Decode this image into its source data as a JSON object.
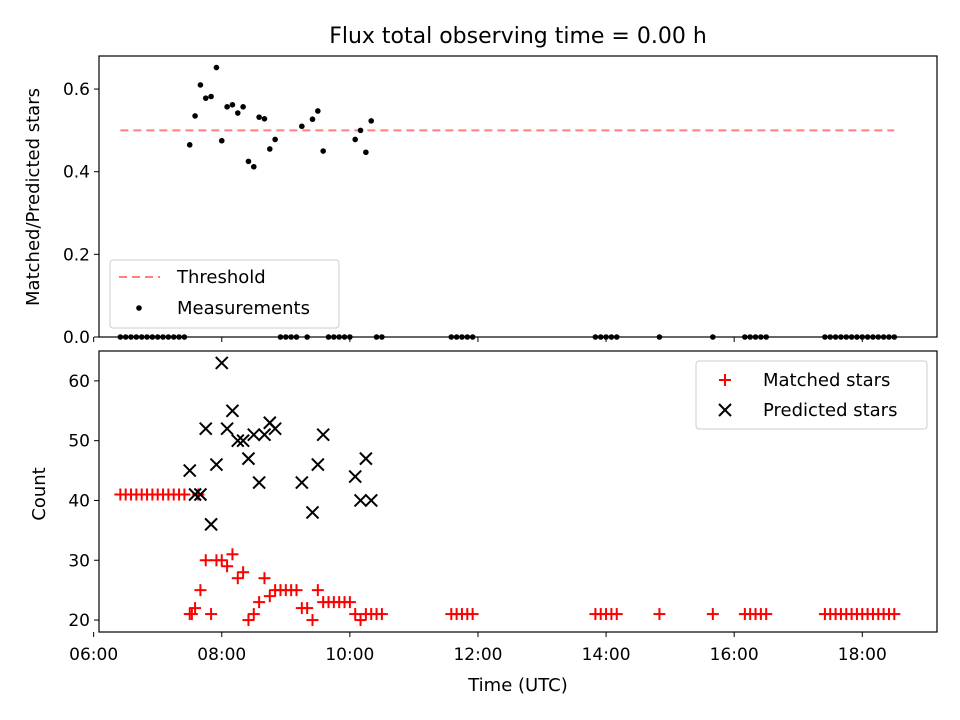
{
  "chart_data": [
    {
      "type": "scatter",
      "title": "Flux total observing time = 0.00 h",
      "xlabel": "",
      "ylabel": "Matched/Predicted stars",
      "xlim": [
        "06:05",
        "19:10"
      ],
      "ylim": [
        0,
        0.68
      ],
      "yticks": [
        0.0,
        0.2,
        0.4,
        0.6
      ],
      "ytick_labels": [
        "0.0",
        "0.2",
        "0.4",
        "0.6"
      ],
      "grid": false,
      "legend_position": "lower-left",
      "threshold": {
        "name": "Threshold",
        "color": "#ff7f7f",
        "style": "dashed",
        "value": 0.5,
        "x_range": [
          "06:25",
          "18:30"
        ]
      },
      "series": [
        {
          "name": "Measurements",
          "color": "#000000",
          "marker": "dot",
          "points": [
            [
              "07:30",
              0.465
            ],
            [
              "07:35",
              0.535
            ],
            [
              "07:40",
              0.61
            ],
            [
              "07:45",
              0.578
            ],
            [
              "07:50",
              0.582
            ],
            [
              "07:55",
              0.652
            ],
            [
              "08:00",
              0.475
            ],
            [
              "08:05",
              0.557
            ],
            [
              "08:10",
              0.562
            ],
            [
              "08:15",
              0.542
            ],
            [
              "08:20",
              0.557
            ],
            [
              "08:25",
              0.425
            ],
            [
              "08:30",
              0.412
            ],
            [
              "08:35",
              0.532
            ],
            [
              "08:40",
              0.528
            ],
            [
              "08:45",
              0.455
            ],
            [
              "08:50",
              0.478
            ],
            [
              "09:15",
              0.51
            ],
            [
              "09:25",
              0.527
            ],
            [
              "09:30",
              0.547
            ],
            [
              "09:35",
              0.45
            ],
            [
              "10:05",
              0.478
            ],
            [
              "10:10",
              0.5
            ],
            [
              "10:15",
              0.447
            ],
            [
              "10:20",
              0.523
            ],
            [
              "06:25",
              0
            ],
            [
              "06:30",
              0
            ],
            [
              "06:35",
              0
            ],
            [
              "06:40",
              0
            ],
            [
              "06:45",
              0
            ],
            [
              "06:50",
              0
            ],
            [
              "06:55",
              0
            ],
            [
              "07:00",
              0
            ],
            [
              "07:05",
              0
            ],
            [
              "07:10",
              0
            ],
            [
              "07:15",
              0
            ],
            [
              "07:20",
              0
            ],
            [
              "07:25",
              0
            ],
            [
              "08:55",
              0
            ],
            [
              "09:00",
              0
            ],
            [
              "09:05",
              0
            ],
            [
              "09:10",
              0
            ],
            [
              "09:20",
              0
            ],
            [
              "09:40",
              0
            ],
            [
              "09:45",
              0
            ],
            [
              "09:50",
              0
            ],
            [
              "09:55",
              0
            ],
            [
              "10:00",
              0
            ],
            [
              "10:25",
              0
            ],
            [
              "10:30",
              0
            ],
            [
              "11:35",
              0
            ],
            [
              "11:40",
              0
            ],
            [
              "11:45",
              0
            ],
            [
              "11:50",
              0
            ],
            [
              "11:55",
              0
            ],
            [
              "13:50",
              0
            ],
            [
              "13:55",
              0
            ],
            [
              "14:00",
              0
            ],
            [
              "14:05",
              0
            ],
            [
              "14:10",
              0
            ],
            [
              "14:50",
              0
            ],
            [
              "15:40",
              0
            ],
            [
              "16:10",
              0
            ],
            [
              "16:15",
              0
            ],
            [
              "16:20",
              0
            ],
            [
              "16:25",
              0
            ],
            [
              "16:30",
              0
            ],
            [
              "17:25",
              0
            ],
            [
              "17:30",
              0
            ],
            [
              "17:35",
              0
            ],
            [
              "17:40",
              0
            ],
            [
              "17:45",
              0
            ],
            [
              "17:50",
              0
            ],
            [
              "17:55",
              0
            ],
            [
              "18:00",
              0
            ],
            [
              "18:05",
              0
            ],
            [
              "18:10",
              0
            ],
            [
              "18:15",
              0
            ],
            [
              "18:20",
              0
            ],
            [
              "18:25",
              0
            ],
            [
              "18:30",
              0
            ]
          ]
        }
      ]
    },
    {
      "type": "scatter",
      "title": "",
      "xlabel": "Time (UTC)",
      "ylabel": "Count",
      "xlim": [
        "06:05",
        "19:10"
      ],
      "ylim": [
        18,
        65
      ],
      "xticks": [
        "06:00",
        "08:00",
        "10:00",
        "12:00",
        "14:00",
        "16:00",
        "18:00"
      ],
      "yticks": [
        20,
        30,
        40,
        50,
        60
      ],
      "grid": false,
      "legend_position": "upper-right",
      "series": [
        {
          "name": "Matched stars",
          "color": "#ff0000",
          "marker": "plus",
          "points": [
            [
              "06:25",
              41
            ],
            [
              "06:30",
              41
            ],
            [
              "06:35",
              41
            ],
            [
              "06:40",
              41
            ],
            [
              "06:45",
              41
            ],
            [
              "06:50",
              41
            ],
            [
              "06:55",
              41
            ],
            [
              "07:00",
              41
            ],
            [
              "07:05",
              41
            ],
            [
              "07:10",
              41
            ],
            [
              "07:15",
              41
            ],
            [
              "07:20",
              41
            ],
            [
              "07:25",
              41
            ],
            [
              "07:30",
              21
            ],
            [
              "07:32",
              21
            ],
            [
              "07:35",
              22
            ],
            [
              "07:38",
              41
            ],
            [
              "07:40",
              25
            ],
            [
              "07:45",
              30
            ],
            [
              "07:50",
              21
            ],
            [
              "07:55",
              30
            ],
            [
              "08:00",
              30
            ],
            [
              "08:05",
              29
            ],
            [
              "08:10",
              31
            ],
            [
              "08:15",
              27
            ],
            [
              "08:20",
              28
            ],
            [
              "08:25",
              20
            ],
            [
              "08:30",
              21
            ],
            [
              "08:35",
              23
            ],
            [
              "08:40",
              27
            ],
            [
              "08:45",
              24
            ],
            [
              "08:50",
              25
            ],
            [
              "08:55",
              25
            ],
            [
              "09:00",
              25
            ],
            [
              "09:05",
              25
            ],
            [
              "09:10",
              25
            ],
            [
              "09:15",
              22
            ],
            [
              "09:20",
              22
            ],
            [
              "09:25",
              20
            ],
            [
              "09:30",
              25
            ],
            [
              "09:35",
              23
            ],
            [
              "09:40",
              23
            ],
            [
              "09:45",
              23
            ],
            [
              "09:50",
              23
            ],
            [
              "09:55",
              23
            ],
            [
              "10:00",
              23
            ],
            [
              "10:05",
              21
            ],
            [
              "10:10",
              20
            ],
            [
              "10:15",
              21
            ],
            [
              "10:20",
              21
            ],
            [
              "10:25",
              21
            ],
            [
              "10:30",
              21
            ],
            [
              "11:35",
              21
            ],
            [
              "11:40",
              21
            ],
            [
              "11:45",
              21
            ],
            [
              "11:50",
              21
            ],
            [
              "11:55",
              21
            ],
            [
              "13:50",
              21
            ],
            [
              "13:55",
              21
            ],
            [
              "14:00",
              21
            ],
            [
              "14:05",
              21
            ],
            [
              "14:10",
              21
            ],
            [
              "14:50",
              21
            ],
            [
              "15:40",
              21
            ],
            [
              "16:10",
              21
            ],
            [
              "16:15",
              21
            ],
            [
              "16:20",
              21
            ],
            [
              "16:25",
              21
            ],
            [
              "16:30",
              21
            ],
            [
              "17:25",
              21
            ],
            [
              "17:30",
              21
            ],
            [
              "17:35",
              21
            ],
            [
              "17:40",
              21
            ],
            [
              "17:45",
              21
            ],
            [
              "17:50",
              21
            ],
            [
              "17:55",
              21
            ],
            [
              "18:00",
              21
            ],
            [
              "18:05",
              21
            ],
            [
              "18:10",
              21
            ],
            [
              "18:15",
              21
            ],
            [
              "18:20",
              21
            ],
            [
              "18:25",
              21
            ],
            [
              "18:30",
              21
            ]
          ]
        },
        {
          "name": "Predicted stars",
          "color": "#000000",
          "marker": "x",
          "points": [
            [
              "07:30",
              45
            ],
            [
              "07:35",
              41
            ],
            [
              "07:40",
              41
            ],
            [
              "07:45",
              52
            ],
            [
              "07:50",
              36
            ],
            [
              "07:55",
              46
            ],
            [
              "08:00",
              63
            ],
            [
              "08:05",
              52
            ],
            [
              "08:10",
              55
            ],
            [
              "08:15",
              50
            ],
            [
              "08:20",
              50
            ],
            [
              "08:25",
              47
            ],
            [
              "08:30",
              51
            ],
            [
              "08:35",
              43
            ],
            [
              "08:40",
              51
            ],
            [
              "08:45",
              53
            ],
            [
              "08:50",
              52
            ],
            [
              "09:15",
              43
            ],
            [
              "09:25",
              38
            ],
            [
              "09:30",
              46
            ],
            [
              "09:35",
              51
            ],
            [
              "10:05",
              44
            ],
            [
              "10:10",
              40
            ],
            [
              "10:15",
              47
            ],
            [
              "10:20",
              40
            ]
          ]
        }
      ]
    }
  ]
}
